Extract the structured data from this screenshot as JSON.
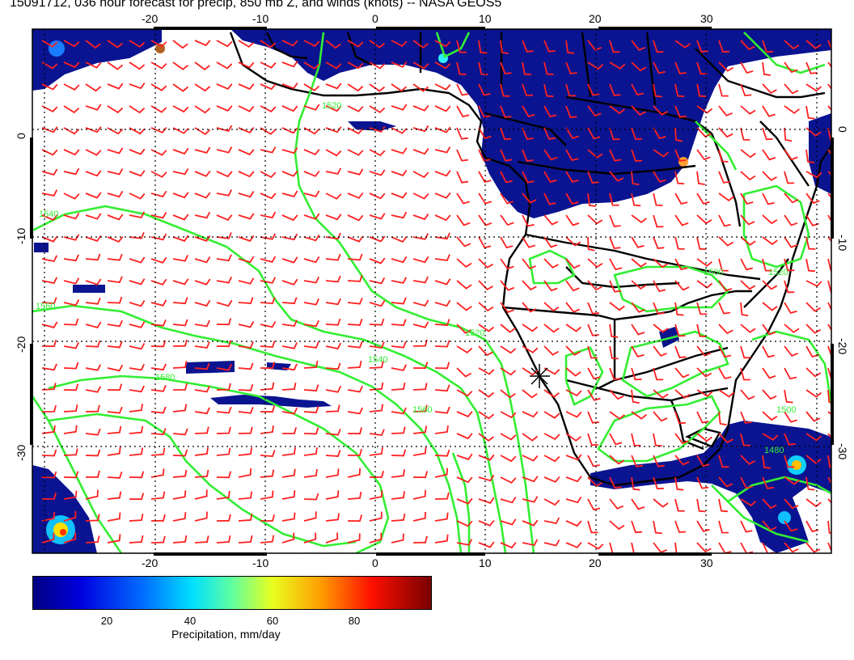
{
  "title": "15091712, 036 hour forecast for precip, 850 mb Z, and winds (knots) -- NASA GEOS5",
  "map": {
    "lon_range": [
      -30,
      40
    ],
    "lat_range": [
      -40,
      10
    ],
    "lon_ticks": [
      "-20",
      "-10",
      "0",
      "10",
      "20",
      "30"
    ],
    "lat_ticks": [
      "0",
      "-10",
      "-20",
      "-30"
    ],
    "contour_labels": [
      "1520",
      "1540",
      "1560",
      "1580",
      "1540",
      "1520",
      "1560",
      "1500",
      "1520",
      "1480",
      "1500"
    ],
    "colors": {
      "ocean_bg": "#ffffff",
      "precip_low": "#0a1490",
      "contour": "#33ee33",
      "wind_barb": "#ff2020",
      "coast": "#000000"
    }
  },
  "colorbar": {
    "min": 0,
    "max": 100,
    "ticks": [
      "20",
      "40",
      "60",
      "80"
    ],
    "label": "Precipitation, mm/day",
    "colors": [
      "#000080",
      "#0000ff",
      "#0080ff",
      "#00ffff",
      "#80ff80",
      "#ffff00",
      "#ff8000",
      "#ff0000",
      "#800000"
    ]
  }
}
